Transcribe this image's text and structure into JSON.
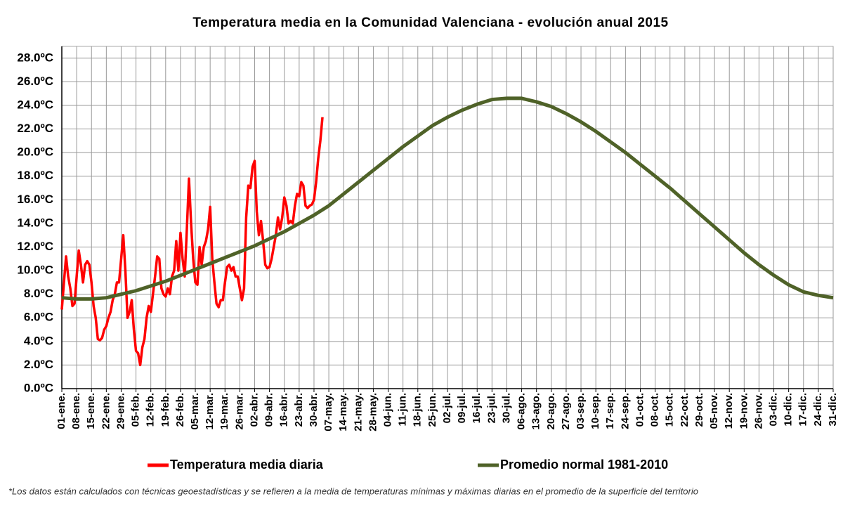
{
  "chart_data": {
    "type": "line",
    "title": "Temperatura media en la Comunidad Valenciana - evolución anual 2015",
    "note": "*Los datos están calculados con técnicas geoestadísticas y se refieren a la media de temperaturas mínimas y máximas diarias en el promedio de la superficie del territorio",
    "xlim": [
      1,
      365
    ],
    "ylim": [
      0,
      29
    ],
    "grid": true,
    "legend": "bottom",
    "yticks": [
      {
        "value": 0,
        "label": "0.0ºC"
      },
      {
        "value": 2,
        "label": "2.0ºC"
      },
      {
        "value": 4,
        "label": "4.0ºC"
      },
      {
        "value": 6,
        "label": "6.0ºC"
      },
      {
        "value": 8,
        "label": "8.0ºC"
      },
      {
        "value": 10,
        "label": "10.0ºC"
      },
      {
        "value": 12,
        "label": "12.0ºC"
      },
      {
        "value": 14,
        "label": "14.0ºC"
      },
      {
        "value": 16,
        "label": "16.0ºC"
      },
      {
        "value": 18,
        "label": "18.0ºC"
      },
      {
        "value": 20,
        "label": "20.0ºC"
      },
      {
        "value": 22,
        "label": "22.0ºC"
      },
      {
        "value": 24,
        "label": "24.0ºC"
      },
      {
        "value": 26,
        "label": "26.0ºC"
      },
      {
        "value": 28,
        "label": "28.0ºC"
      }
    ],
    "xticks": [
      {
        "value": 1,
        "label": "01-ene."
      },
      {
        "value": 8,
        "label": "08-ene."
      },
      {
        "value": 15,
        "label": "15-ene."
      },
      {
        "value": 22,
        "label": "22-ene."
      },
      {
        "value": 29,
        "label": "29-ene."
      },
      {
        "value": 36,
        "label": "05-feb."
      },
      {
        "value": 43,
        "label": "12-feb."
      },
      {
        "value": 50,
        "label": "19-feb."
      },
      {
        "value": 57,
        "label": "26-feb."
      },
      {
        "value": 64,
        "label": "05-mar."
      },
      {
        "value": 71,
        "label": "12-mar."
      },
      {
        "value": 78,
        "label": "19-mar."
      },
      {
        "value": 85,
        "label": "26-mar."
      },
      {
        "value": 92,
        "label": "02-abr."
      },
      {
        "value": 99,
        "label": "09-abr."
      },
      {
        "value": 106,
        "label": "16-abr."
      },
      {
        "value": 113,
        "label": "23-abr."
      },
      {
        "value": 120,
        "label": "30-abr."
      },
      {
        "value": 127,
        "label": "07-may."
      },
      {
        "value": 134,
        "label": "14-may."
      },
      {
        "value": 141,
        "label": "21-may."
      },
      {
        "value": 148,
        "label": "28-may."
      },
      {
        "value": 155,
        "label": "04-jun."
      },
      {
        "value": 162,
        "label": "11-jun."
      },
      {
        "value": 169,
        "label": "18-jun."
      },
      {
        "value": 176,
        "label": "25-jun."
      },
      {
        "value": 183,
        "label": "02-jul."
      },
      {
        "value": 190,
        "label": "09-jul."
      },
      {
        "value": 197,
        "label": "16-jul."
      },
      {
        "value": 204,
        "label": "23-jul."
      },
      {
        "value": 211,
        "label": "30-jul."
      },
      {
        "value": 218,
        "label": "06-ago."
      },
      {
        "value": 225,
        "label": "13-ago."
      },
      {
        "value": 232,
        "label": "20-ago."
      },
      {
        "value": 239,
        "label": "27-ago."
      },
      {
        "value": 246,
        "label": "03-sep."
      },
      {
        "value": 253,
        "label": "10-sep."
      },
      {
        "value": 260,
        "label": "17-sep."
      },
      {
        "value": 267,
        "label": "24-sep."
      },
      {
        "value": 274,
        "label": "01-oct."
      },
      {
        "value": 281,
        "label": "08-oct."
      },
      {
        "value": 288,
        "label": "15-oct."
      },
      {
        "value": 295,
        "label": "22-oct."
      },
      {
        "value": 302,
        "label": "29-oct."
      },
      {
        "value": 309,
        "label": "05-nov."
      },
      {
        "value": 316,
        "label": "12-nov."
      },
      {
        "value": 323,
        "label": "19-nov."
      },
      {
        "value": 330,
        "label": "26-nov."
      },
      {
        "value": 337,
        "label": "03-dic."
      },
      {
        "value": 344,
        "label": "10-dic."
      },
      {
        "value": 351,
        "label": "17-dic."
      },
      {
        "value": 358,
        "label": "24-dic."
      },
      {
        "value": 365,
        "label": "31-dic."
      }
    ],
    "series": [
      {
        "name": "Temperatura media diaria",
        "color": "#ff0000",
        "x": [
          1,
          2,
          3,
          4,
          5,
          6,
          7,
          8,
          9,
          10,
          11,
          12,
          13,
          14,
          15,
          16,
          17,
          18,
          19,
          20,
          21,
          22,
          23,
          24,
          25,
          26,
          27,
          28,
          29,
          30,
          31,
          32,
          33,
          34,
          35,
          36,
          37,
          38,
          39,
          40,
          41,
          42,
          43,
          44,
          45,
          46,
          47,
          48,
          49,
          50,
          51,
          52,
          53,
          54,
          55,
          56,
          57,
          58,
          59,
          60,
          61,
          62,
          63,
          64,
          65,
          66,
          67,
          68,
          69,
          70,
          71,
          72,
          73,
          74,
          75,
          76,
          77,
          78,
          79,
          80,
          81,
          82,
          83,
          84,
          85,
          86,
          87,
          88,
          89,
          90,
          91,
          92,
          93,
          94,
          95,
          96,
          97,
          98,
          99,
          100,
          101,
          102,
          103,
          104,
          105,
          106,
          107,
          108,
          109,
          110,
          111,
          112,
          113,
          114,
          115,
          116,
          117,
          118,
          119,
          120,
          121,
          122,
          123,
          124
        ],
        "values": [
          6.7,
          9,
          11.2,
          9.5,
          8.5,
          7,
          7.2,
          9.5,
          11.7,
          10.5,
          9,
          10.5,
          10.8,
          10.5,
          9,
          7,
          6,
          4.2,
          4.1,
          4.3,
          5,
          5.3,
          6,
          6.5,
          7.5,
          8,
          9,
          9,
          11,
          13,
          10,
          6,
          6.5,
          7.5,
          5,
          3.2,
          3,
          2,
          3.5,
          4.2,
          6,
          7,
          6.5,
          8,
          9.5,
          11.2,
          11,
          8.5,
          8,
          7.8,
          8.5,
          8,
          9.5,
          10,
          12.5,
          10,
          13.2,
          11,
          9.5,
          13.5,
          17.8,
          14,
          11,
          9,
          8.8,
          12,
          10.5,
          12,
          12.5,
          13.5,
          15.4,
          11,
          9,
          7.2,
          6.9,
          7.5,
          7.5,
          9,
          10.3,
          10.5,
          10,
          10.3,
          9.5,
          9.5,
          8.5,
          7.5,
          8.5,
          14.5,
          17.2,
          17,
          18.8,
          19.3,
          15,
          13,
          14.2,
          12.5,
          10.5,
          10.2,
          10.3,
          11,
          12,
          13,
          14.5,
          13.5,
          14.5,
          16.2,
          15.5,
          14,
          14.2,
          14,
          15.5,
          16.5,
          16.3,
          17.5,
          17.2,
          15.5,
          15.3,
          15.5,
          15.6,
          16,
          17.5,
          19.5,
          21,
          23
        ]
      },
      {
        "name": "Promedio normal 1981-2010",
        "color": "#4f6228",
        "x": [
          1,
          8,
          15,
          22,
          29,
          36,
          43,
          50,
          57,
          64,
          71,
          78,
          85,
          92,
          99,
          106,
          113,
          120,
          127,
          134,
          141,
          148,
          155,
          162,
          169,
          176,
          183,
          190,
          197,
          204,
          211,
          218,
          225,
          232,
          239,
          246,
          253,
          260,
          267,
          274,
          281,
          288,
          295,
          302,
          309,
          316,
          323,
          330,
          337,
          344,
          351,
          358,
          365
        ],
        "values": [
          7.7,
          7.6,
          7.6,
          7.7,
          8.0,
          8.3,
          8.7,
          9.1,
          9.6,
          10.1,
          10.6,
          11.1,
          11.6,
          12.1,
          12.7,
          13.3,
          14.0,
          14.7,
          15.5,
          16.5,
          17.5,
          18.5,
          19.5,
          20.5,
          21.4,
          22.3,
          23.0,
          23.6,
          24.1,
          24.5,
          24.6,
          24.6,
          24.3,
          23.9,
          23.3,
          22.6,
          21.8,
          20.9,
          20.0,
          19.0,
          18.0,
          17.0,
          15.9,
          14.8,
          13.7,
          12.6,
          11.5,
          10.5,
          9.6,
          8.8,
          8.2,
          7.9,
          7.7
        ]
      }
    ]
  }
}
